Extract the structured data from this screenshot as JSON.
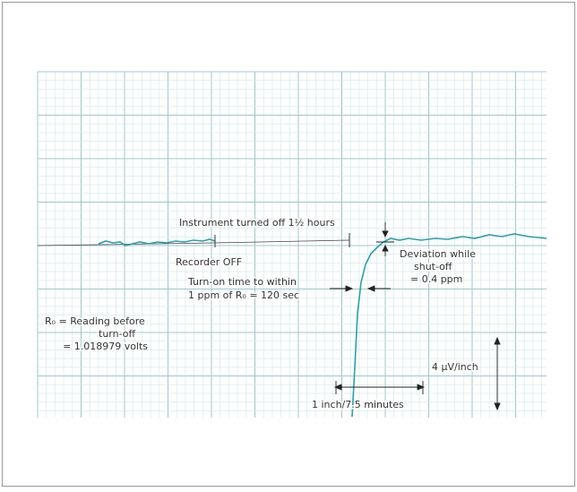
{
  "annotations": {
    "instrument_off": "Instrument turned off 1½ hours",
    "recorder_off": "Recorder OFF",
    "deviation": [
      "Deviation while",
      "shut-off",
      "= 0.4 ppm"
    ],
    "turn_on": [
      "Turn-on time to within",
      "1 ppm of R₀ = 120 sec"
    ],
    "reading": [
      "R₀ = Reading before",
      "turn-off",
      "= 1.018979 volts"
    ],
    "vertical_scale": "4 μV/inch",
    "horizontal_scale": "1 inch/7.5 minutes"
  }
}
